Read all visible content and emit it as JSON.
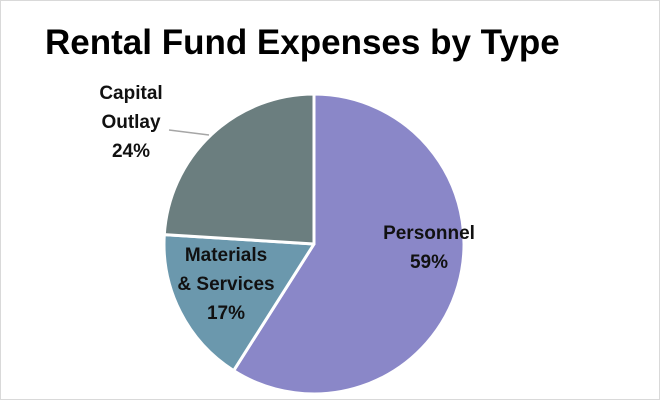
{
  "chart_data": {
    "type": "pie",
    "title": "Rental Fund Expenses by Type",
    "slices": [
      {
        "name": "Personnel",
        "value": 59,
        "label_lines": [
          "Personnel",
          "59%"
        ],
        "color": "#8a87c8"
      },
      {
        "name": "Materials & Services",
        "value": 17,
        "label_lines": [
          "Materials",
          "& Services",
          "17%"
        ],
        "color": "#6b98ad"
      },
      {
        "name": "Capital Outlay",
        "value": 24,
        "label_lines": [
          "Capital",
          "Outlay",
          "24%"
        ],
        "color": "#6b7e7f"
      }
    ],
    "legend": "none"
  }
}
